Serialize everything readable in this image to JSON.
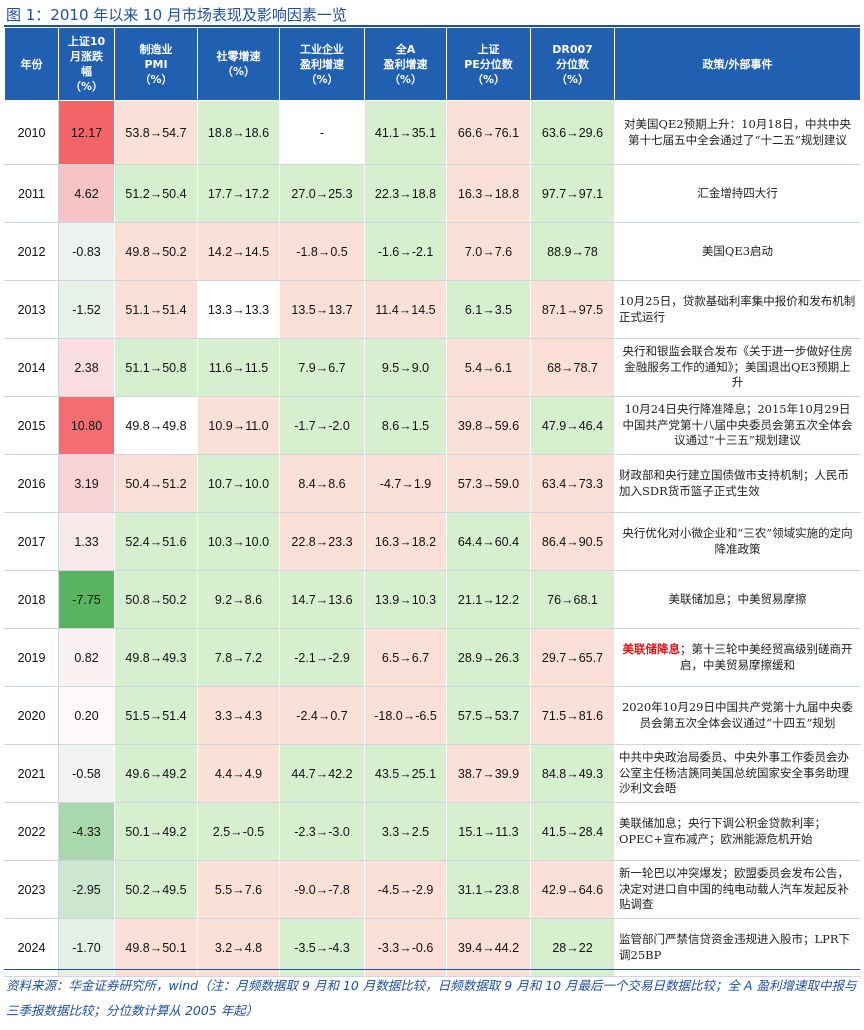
{
  "title": "图 1：2010 年以来 10 月市场表现及影响因素一览",
  "headers": [
    [
      "年份"
    ],
    [
      "上证10",
      "月涨跌",
      "幅",
      "（%）"
    ],
    [
      "制造业",
      "PMI",
      "（%）"
    ],
    [
      "社零增速",
      "（%）"
    ],
    [
      "工业企业",
      "盈利增速",
      "（%）"
    ],
    [
      "全A",
      "盈利增速",
      "（%）"
    ],
    [
      "上证",
      "PE分位数",
      "（%）"
    ],
    [
      "DR007",
      "分位数",
      "（%）"
    ],
    [
      "政策/外部事件"
    ]
  ],
  "colors": {
    "header_bg": "#215fb0",
    "title": "#1e4fa3",
    "green": "#d6f0cf",
    "pink": "#fbe0d8",
    "white": "#ffffff",
    "highlight_red": "#e01818"
  },
  "rows": [
    {
      "year": "2010",
      "shsz": "12.17",
      "shsz_bg": "#f4656a",
      "pmi": "53.8→54.7",
      "pmi_bg": "pink",
      "retail": "18.8→18.6",
      "retail_bg": "green",
      "industry": "-",
      "industry_bg": "white",
      "alla": "41.1→35.1",
      "alla_bg": "green",
      "pe": "66.6→76.1",
      "pe_bg": "pink",
      "dr": "63.6→29.6",
      "dr_bg": "green",
      "event_pre": "",
      "event_red": "",
      "event": "对美国QE2预期上升：10月18日，中共中央第十七届五中全会通过了“十二五”规划建议",
      "align": "center"
    },
    {
      "year": "2011",
      "shsz": "4.62",
      "shsz_bg": "#f6c3c6",
      "pmi": "51.2→50.4",
      "pmi_bg": "green",
      "retail": "17.7→17.2",
      "retail_bg": "green",
      "industry": "27.0→25.3",
      "industry_bg": "green",
      "alla": "22.3→18.8",
      "alla_bg": "green",
      "pe": "16.3→18.8",
      "pe_bg": "pink",
      "dr": "97.7→97.1",
      "dr_bg": "green",
      "event_pre": "",
      "event_red": "",
      "event": "汇金增持四大行",
      "align": "center"
    },
    {
      "year": "2012",
      "shsz": "-0.83",
      "shsz_bg": "#eef2ee",
      "pmi": "49.8→50.2",
      "pmi_bg": "pink",
      "retail": "14.2→14.5",
      "retail_bg": "pink",
      "industry": "-1.8→0.5",
      "industry_bg": "pink",
      "alla": "-1.6→-2.1",
      "alla_bg": "green",
      "pe": "7.0→7.6",
      "pe_bg": "pink",
      "dr": "88.9→78",
      "dr_bg": "green",
      "event_pre": "",
      "event_red": "",
      "event": "美国QE3启动",
      "align": "center"
    },
    {
      "year": "2013",
      "shsz": "-1.52",
      "shsz_bg": "#e8f1e8",
      "pmi": "51.1→51.4",
      "pmi_bg": "pink",
      "retail": "13.3→13.3",
      "retail_bg": "white",
      "industry": "13.5→13.7",
      "industry_bg": "pink",
      "alla": "11.4→14.5",
      "alla_bg": "pink",
      "pe": "6.1→3.5",
      "pe_bg": "green",
      "dr": "87.1→97.5",
      "dr_bg": "pink",
      "event_pre": "",
      "event_red": "",
      "event": "10月25日，贷款基础利率集中报价和发布机制正式运行",
      "align": "left"
    },
    {
      "year": "2014",
      "shsz": "2.38",
      "shsz_bg": "#f9dde0",
      "pmi": "51.1→50.8",
      "pmi_bg": "green",
      "retail": "11.6→11.5",
      "retail_bg": "green",
      "industry": "7.9→6.7",
      "industry_bg": "green",
      "alla": "9.5→9.0",
      "alla_bg": "green",
      "pe": "5.4→6.1",
      "pe_bg": "pink",
      "dr": "68→78.7",
      "dr_bg": "pink",
      "event_pre": "",
      "event_red": "",
      "event": "央行和银监会联合发布《关于进一步做好住房金融服务工作的通知》；美国退出QE3预期上升",
      "align": "center"
    },
    {
      "year": "2015",
      "shsz": "10.80",
      "shsz_bg": "#f36d73",
      "pmi": "49.8→49.8",
      "pmi_bg": "white",
      "retail": "10.9→11.0",
      "retail_bg": "pink",
      "industry": "-1.7→-2.0",
      "industry_bg": "green",
      "alla": "8.6→1.5",
      "alla_bg": "green",
      "pe": "39.8→59.6",
      "pe_bg": "pink",
      "dr": "47.9→46.4",
      "dr_bg": "green",
      "event_pre": "",
      "event_red": "",
      "event": "10月24日央行降准降息；2015年10月29日中国共产党第十八届中央委员会第五次全体会议通过“十三五”规划建议",
      "align": "center"
    },
    {
      "year": "2016",
      "shsz": "3.19",
      "shsz_bg": "#f7d3d6",
      "pmi": "50.4→51.2",
      "pmi_bg": "pink",
      "retail": "10.7→10.0",
      "retail_bg": "green",
      "industry": "8.4→8.6",
      "industry_bg": "pink",
      "alla": "-4.7→1.9",
      "alla_bg": "pink",
      "pe": "57.3→59.0",
      "pe_bg": "pink",
      "dr": "63.4→73.3",
      "dr_bg": "pink",
      "event_pre": "",
      "event_red": "",
      "event": "财政部和央行建立国债做市支持机制；人民币加入SDR货币篮子正式生效",
      "align": "left"
    },
    {
      "year": "2017",
      "shsz": "1.33",
      "shsz_bg": "#fae9eb",
      "pmi": "52.4→51.6",
      "pmi_bg": "green",
      "retail": "10.3→10.0",
      "retail_bg": "green",
      "industry": "22.8→23.3",
      "industry_bg": "pink",
      "alla": "16.3→18.2",
      "alla_bg": "pink",
      "pe": "64.4→60.4",
      "pe_bg": "green",
      "dr": "86.4→90.5",
      "dr_bg": "pink",
      "event_pre": "",
      "event_red": "",
      "event": "央行优化对小微企业和“三农”领域实施的定向降准政策",
      "align": "center"
    },
    {
      "year": "2018",
      "shsz": "-7.75",
      "shsz_bg": "#58b45e",
      "pmi": "50.8→50.2",
      "pmi_bg": "green",
      "retail": "9.2→8.6",
      "retail_bg": "green",
      "industry": "14.7→13.6",
      "industry_bg": "green",
      "alla": "13.9→10.3",
      "alla_bg": "green",
      "pe": "21.1→12.2",
      "pe_bg": "green",
      "dr": "76→68.1",
      "dr_bg": "green",
      "event_pre": "",
      "event_red": "",
      "event": "美联储加息；中美贸易摩擦",
      "align": "center"
    },
    {
      "year": "2019",
      "shsz": "0.82",
      "shsz_bg": "#fbf1f3",
      "pmi": "49.8→49.3",
      "pmi_bg": "green",
      "retail": "7.8→7.2",
      "retail_bg": "green",
      "industry": "-2.1→-2.9",
      "industry_bg": "green",
      "alla": "6.5→6.7",
      "alla_bg": "pink",
      "pe": "28.9→26.3",
      "pe_bg": "green",
      "dr": "29.7→65.7",
      "dr_bg": "pink",
      "event_pre": "",
      "event_red": "美联储降息",
      "event": "；第十三轮中美经贸高级别磋商开启，中美贸易摩擦缓和",
      "align": "center"
    },
    {
      "year": "2020",
      "shsz": "0.20",
      "shsz_bg": "#fdf8f9",
      "pmi": "51.5→51.4",
      "pmi_bg": "green",
      "retail": "3.3→4.3",
      "retail_bg": "pink",
      "industry": "-2.4→0.7",
      "industry_bg": "pink",
      "alla": "-18.0→-6.5",
      "alla_bg": "pink",
      "pe": "57.5→53.7",
      "pe_bg": "green",
      "dr": "71.5→81.6",
      "dr_bg": "pink",
      "event_pre": "",
      "event_red": "",
      "event": "2020年10月29日中国共产党第十九届中央委员会第五次全体会议通过“十四五”规划",
      "align": "center"
    },
    {
      "year": "2021",
      "shsz": "-0.58",
      "shsz_bg": "#f1f4f1",
      "pmi": "49.6→49.2",
      "pmi_bg": "green",
      "retail": "4.4→4.9",
      "retail_bg": "pink",
      "industry": "44.7→42.2",
      "industry_bg": "green",
      "alla": "43.5→25.1",
      "alla_bg": "green",
      "pe": "38.7→39.9",
      "pe_bg": "pink",
      "dr": "84.8→49.3",
      "dr_bg": "green",
      "event_pre": "",
      "event_red": "",
      "event": "中共中央政治局委员、中央外事工作委员会办公室主任杨洁篪同美国总统国家安全事务助理沙利文会晤",
      "align": "left"
    },
    {
      "year": "2022",
      "shsz": "-4.33",
      "shsz_bg": "#a9d8ac",
      "pmi": "50.1→49.2",
      "pmi_bg": "green",
      "retail": "2.5→-0.5",
      "retail_bg": "green",
      "industry": "-2.3→-3.0",
      "industry_bg": "green",
      "alla": "3.3→2.5",
      "alla_bg": "green",
      "pe": "15.1→11.3",
      "pe_bg": "green",
      "dr": "41.5→28.4",
      "dr_bg": "green",
      "event_pre": "",
      "event_red": "",
      "event": "美联储加息；央行下调公积金贷款利率；OPEC+宣布减产；欧洲能源危机开始",
      "align": "left"
    },
    {
      "year": "2023",
      "shsz": "-2.95",
      "shsz_bg": "#cde6cf",
      "pmi": "50.2→49.5",
      "pmi_bg": "green",
      "retail": "5.5→7.6",
      "retail_bg": "pink",
      "industry": "-9.0→-7.8",
      "industry_bg": "pink",
      "alla": "-4.5→-2.9",
      "alla_bg": "pink",
      "pe": "31.1→23.8",
      "pe_bg": "green",
      "dr": "42.9→64.6",
      "dr_bg": "pink",
      "event_pre": "",
      "event_red": "",
      "event": "新一轮巴以冲突爆发；欧盟委员会发布公告，决定对进口自中国的纯电动载人汽车发起反补贴调查",
      "align": "left"
    },
    {
      "year": "2024",
      "shsz": "-1.70",
      "shsz_bg": "#e6efe6",
      "pmi": "49.8→50.1",
      "pmi_bg": "pink",
      "retail": "3.2→4.8",
      "retail_bg": "pink",
      "industry": "-3.5→-4.3",
      "industry_bg": "green",
      "alla": "-3.3→-0.6",
      "alla_bg": "pink",
      "pe": "39.4→44.2",
      "pe_bg": "pink",
      "dr": "28→22",
      "dr_bg": "green",
      "event_pre": "",
      "event_red": "",
      "event": "监管部门严禁信贷资金违规进入股市；LPR下调25BP",
      "align": "left"
    }
  ],
  "source": "资料来源：华金证券研究所，wind（注：月频数据取 9 月和 10 月数据比较，日频数据取 9 月和 10 月最后一个交易日数据比较；全 A 盈利增速取中报与三季报数据比较；分位数计算从 2005 年起）"
}
